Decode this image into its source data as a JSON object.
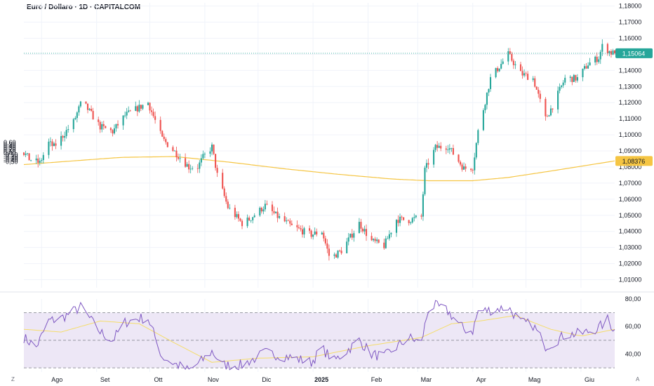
{
  "chart_title": "Euro / Dollaro · 1D · CAPITALCOM",
  "corner_left": "Z",
  "corner_right": "A",
  "chart_data": {
    "type": "candlestick",
    "title": "Euro / Dollaro · 1D · CAPITALCOM",
    "last_price_label": "1,15064",
    "ma_label": "1,08376",
    "colors": {
      "up": "#26a69a",
      "down": "#ef5350",
      "ma": "#f5c543",
      "last_line": "#26a69a",
      "rsi": "#7e57c2",
      "rsi_ma": "#f5dd6a",
      "rsi_band": "#ede7f6"
    },
    "x_labels": [
      "Ago",
      "Set",
      "Ott",
      "Nov",
      "Dic",
      "2025",
      "Feb",
      "Mar",
      "Apr",
      "Mag",
      "Giu"
    ],
    "x_label_bold": "2025",
    "right_axis_ticks": [
      "1,18000",
      "1,17000",
      "1,16000",
      "1,15000",
      "1,14000",
      "1,13000",
      "1,12000",
      "1,11000",
      "1,10000",
      "1,09000",
      "1,08000",
      "1,07000",
      "1,06000",
      "1,05000",
      "1,04000",
      "1,03000",
      "1,02000",
      "1,01000"
    ],
    "right_axis_values": [
      1.18,
      1.17,
      1.16,
      1.15,
      1.14,
      1.13,
      1.12,
      1.11,
      1.1,
      1.09,
      1.08,
      1.07,
      1.06,
      1.05,
      1.04,
      1.03,
      1.02,
      1.01
    ],
    "left_axis_ticks": [
      "0,60",
      "0,50",
      "0,40",
      "0,30",
      "0,20",
      "0,10",
      "0,00",
      "-0,10",
      "-0,20",
      "-0,30",
      "-0,40",
      "-0,50"
    ],
    "left_axis_values": [
      0.6,
      0.5,
      0.4,
      0.3,
      0.2,
      0.1,
      0.0,
      -0.1,
      -0.2,
      -0.3,
      -0.4,
      -0.5
    ],
    "price_range": [
      1.005,
      1.182
    ],
    "price_anchor": [
      [
        "2024-07-22",
        1.089
      ],
      [
        "2024-07-25",
        1.085
      ],
      [
        "2024-07-31",
        1.0825
      ],
      [
        "2024-08-05",
        1.095
      ],
      [
        "2024-08-08",
        1.0925
      ],
      [
        "2024-08-14",
        1.101
      ],
      [
        "2024-08-19",
        1.108
      ],
      [
        "2024-08-23",
        1.119
      ],
      [
        "2024-08-26",
        1.1175
      ],
      [
        "2024-09-03",
        1.105
      ],
      [
        "2024-09-10",
        1.102
      ],
      [
        "2024-09-17",
        1.112
      ],
      [
        "2024-09-25",
        1.117
      ],
      [
        "2024-09-30",
        1.12
      ],
      [
        "2024-10-08",
        1.0975
      ],
      [
        "2024-10-15",
        1.0895
      ],
      [
        "2024-10-23",
        1.08
      ],
      [
        "2024-10-28",
        1.08
      ],
      [
        "2024-10-31",
        1.086
      ],
      [
        "2024-11-05",
        1.0925
      ],
      [
        "2024-11-08",
        1.075
      ],
      [
        "2024-11-14",
        1.055
      ],
      [
        "2024-11-22",
        1.045
      ],
      [
        "2024-11-26",
        1.0475
      ],
      [
        "2024-12-05",
        1.056
      ],
      [
        "2024-12-11",
        1.05
      ],
      [
        "2024-12-20",
        1.043
      ],
      [
        "2024-12-31",
        1.038
      ],
      [
        "2025-01-06",
        1.04
      ],
      [
        "2025-01-10",
        1.025
      ],
      [
        "2025-01-13",
        1.025
      ],
      [
        "2025-01-17",
        1.028
      ],
      [
        "2025-01-27",
        1.045
      ],
      [
        "2025-02-03",
        1.034
      ],
      [
        "2025-02-10",
        1.031
      ],
      [
        "2025-02-17",
        1.0475
      ],
      [
        "2025-02-24",
        1.047
      ],
      [
        "2025-03-03",
        1.049
      ],
      [
        "2025-03-05",
        1.078
      ],
      [
        "2025-03-11",
        1.092
      ],
      [
        "2025-03-18",
        1.093
      ],
      [
        "2025-03-27",
        1.079
      ],
      [
        "2025-04-01",
        1.08
      ],
      [
        "2025-04-04",
        1.102
      ],
      [
        "2025-04-11",
        1.135
      ],
      [
        "2025-04-21",
        1.15
      ],
      [
        "2025-04-28",
        1.138
      ],
      [
        "2025-05-05",
        1.135
      ],
      [
        "2025-05-12",
        1.11
      ],
      [
        "2025-05-16",
        1.118
      ],
      [
        "2025-05-23",
        1.135
      ],
      [
        "2025-05-30",
        1.135
      ],
      [
        "2025-06-05",
        1.144
      ],
      [
        "2025-06-11",
        1.148
      ],
      [
        "2025-06-13",
        1.155
      ],
      [
        "2025-06-18",
        1.151
      ],
      [
        "2025-06-20",
        1.1506
      ]
    ],
    "moving_average": [
      [
        "2024-07-22",
        1.0815
      ],
      [
        "2024-08-15",
        1.0835
      ],
      [
        "2024-09-15",
        1.086
      ],
      [
        "2024-10-15",
        1.0865
      ],
      [
        "2024-11-15",
        1.083
      ],
      [
        "2024-12-15",
        1.079
      ],
      [
        "2025-01-15",
        1.0755
      ],
      [
        "2025-02-15",
        1.0725
      ],
      [
        "2025-03-07",
        1.0715
      ],
      [
        "2025-04-01",
        1.0715
      ],
      [
        "2025-04-21",
        1.0735
      ],
      [
        "2025-05-15",
        1.0775
      ],
      [
        "2025-06-20",
        1.0838
      ]
    ],
    "rsi_ticks": [
      "80,00",
      "60,00",
      "40,00"
    ],
    "rsi_tick_values": [
      80,
      60,
      40
    ],
    "rsi_range": [
      27,
      80
    ],
    "rsi_levels": [
      70,
      50,
      30
    ],
    "rsi": [
      [
        "2024-07-22",
        52
      ],
      [
        "2024-07-29",
        45
      ],
      [
        "2024-08-05",
        64
      ],
      [
        "2024-08-12",
        66
      ],
      [
        "2024-08-23",
        74
      ],
      [
        "2024-09-03",
        56
      ],
      [
        "2024-09-10",
        50
      ],
      [
        "2024-09-17",
        63
      ],
      [
        "2024-09-25",
        66
      ],
      [
        "2024-09-30",
        66
      ],
      [
        "2024-10-08",
        38
      ],
      [
        "2024-10-15",
        33
      ],
      [
        "2024-10-23",
        28
      ],
      [
        "2024-10-31",
        36
      ],
      [
        "2024-11-05",
        42
      ],
      [
        "2024-11-11",
        32
      ],
      [
        "2024-11-22",
        32
      ],
      [
        "2024-12-05",
        41
      ],
      [
        "2024-12-18",
        38
      ],
      [
        "2024-12-31",
        34
      ],
      [
        "2025-01-06",
        44
      ],
      [
        "2025-01-13",
        35
      ],
      [
        "2025-01-27",
        50
      ],
      [
        "2025-02-03",
        40
      ],
      [
        "2025-02-10",
        38
      ],
      [
        "2025-02-24",
        52
      ],
      [
        "2025-03-03",
        48
      ],
      [
        "2025-03-07",
        73
      ],
      [
        "2025-03-11",
        75
      ],
      [
        "2025-03-18",
        71
      ],
      [
        "2025-03-27",
        58
      ],
      [
        "2025-04-01",
        57
      ],
      [
        "2025-04-04",
        71
      ],
      [
        "2025-04-11",
        72
      ],
      [
        "2025-04-21",
        74
      ],
      [
        "2025-04-28",
        63
      ],
      [
        "2025-05-05",
        61
      ],
      [
        "2025-05-12",
        46
      ],
      [
        "2025-05-16",
        48
      ],
      [
        "2025-05-23",
        54
      ],
      [
        "2025-06-02",
        55
      ],
      [
        "2025-06-11",
        59
      ],
      [
        "2025-06-16",
        65
      ],
      [
        "2025-06-20",
        57
      ]
    ],
    "rsi_ma": [
      [
        "2024-07-22",
        58
      ],
      [
        "2024-08-12",
        56
      ],
      [
        "2024-09-03",
        64
      ],
      [
        "2024-09-25",
        62
      ],
      [
        "2024-10-15",
        48
      ],
      [
        "2024-11-05",
        34
      ],
      [
        "2024-12-01",
        37
      ],
      [
        "2025-01-01",
        38
      ],
      [
        "2025-02-01",
        46
      ],
      [
        "2025-03-03",
        52
      ],
      [
        "2025-03-20",
        62
      ],
      [
        "2025-04-05",
        64
      ],
      [
        "2025-04-25",
        68
      ],
      [
        "2025-05-15",
        58
      ],
      [
        "2025-06-01",
        53
      ],
      [
        "2025-06-20",
        58
      ]
    ]
  }
}
